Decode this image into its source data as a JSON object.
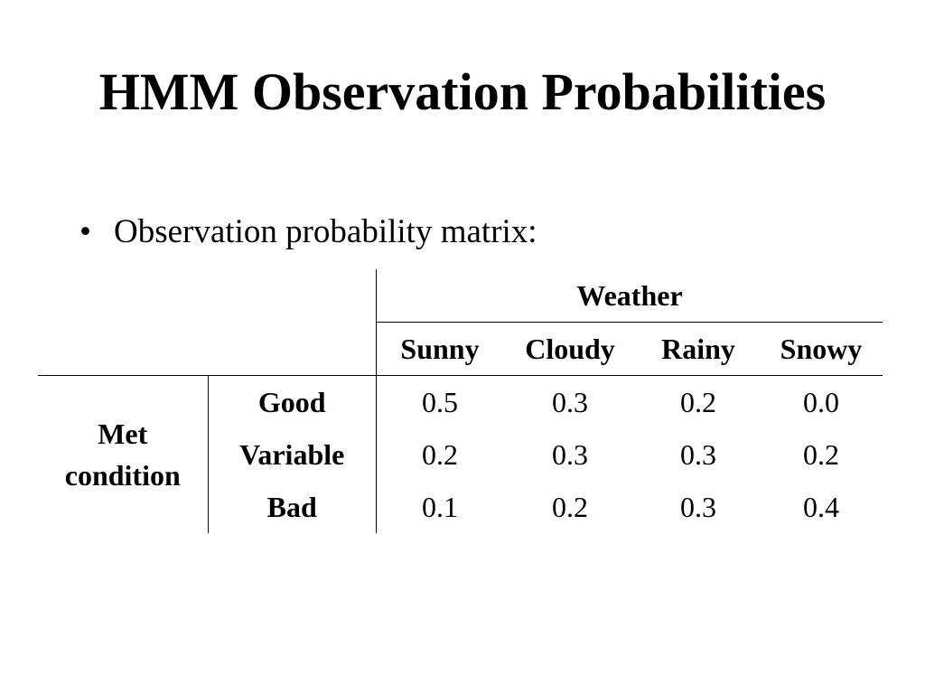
{
  "slide": {
    "title": "HMM Observation Probabilities",
    "bullet_symbol": "•",
    "bullet_text": "Observation probability matrix:"
  },
  "matrix": {
    "column_group_label": "Weather",
    "columns": [
      "Sunny",
      "Cloudy",
      "Rainy",
      "Snowy"
    ],
    "row_group_label_line1": "Met",
    "row_group_label_line2": "condition",
    "rows": [
      {
        "label": "Good",
        "values": [
          "0.5",
          "0.3",
          "0.2",
          "0.0"
        ]
      },
      {
        "label": "Variable",
        "values": [
          "0.2",
          "0.3",
          "0.3",
          "0.2"
        ]
      },
      {
        "label": "Bad",
        "values": [
          "0.1",
          "0.2",
          "0.3",
          "0.4"
        ]
      }
    ]
  }
}
